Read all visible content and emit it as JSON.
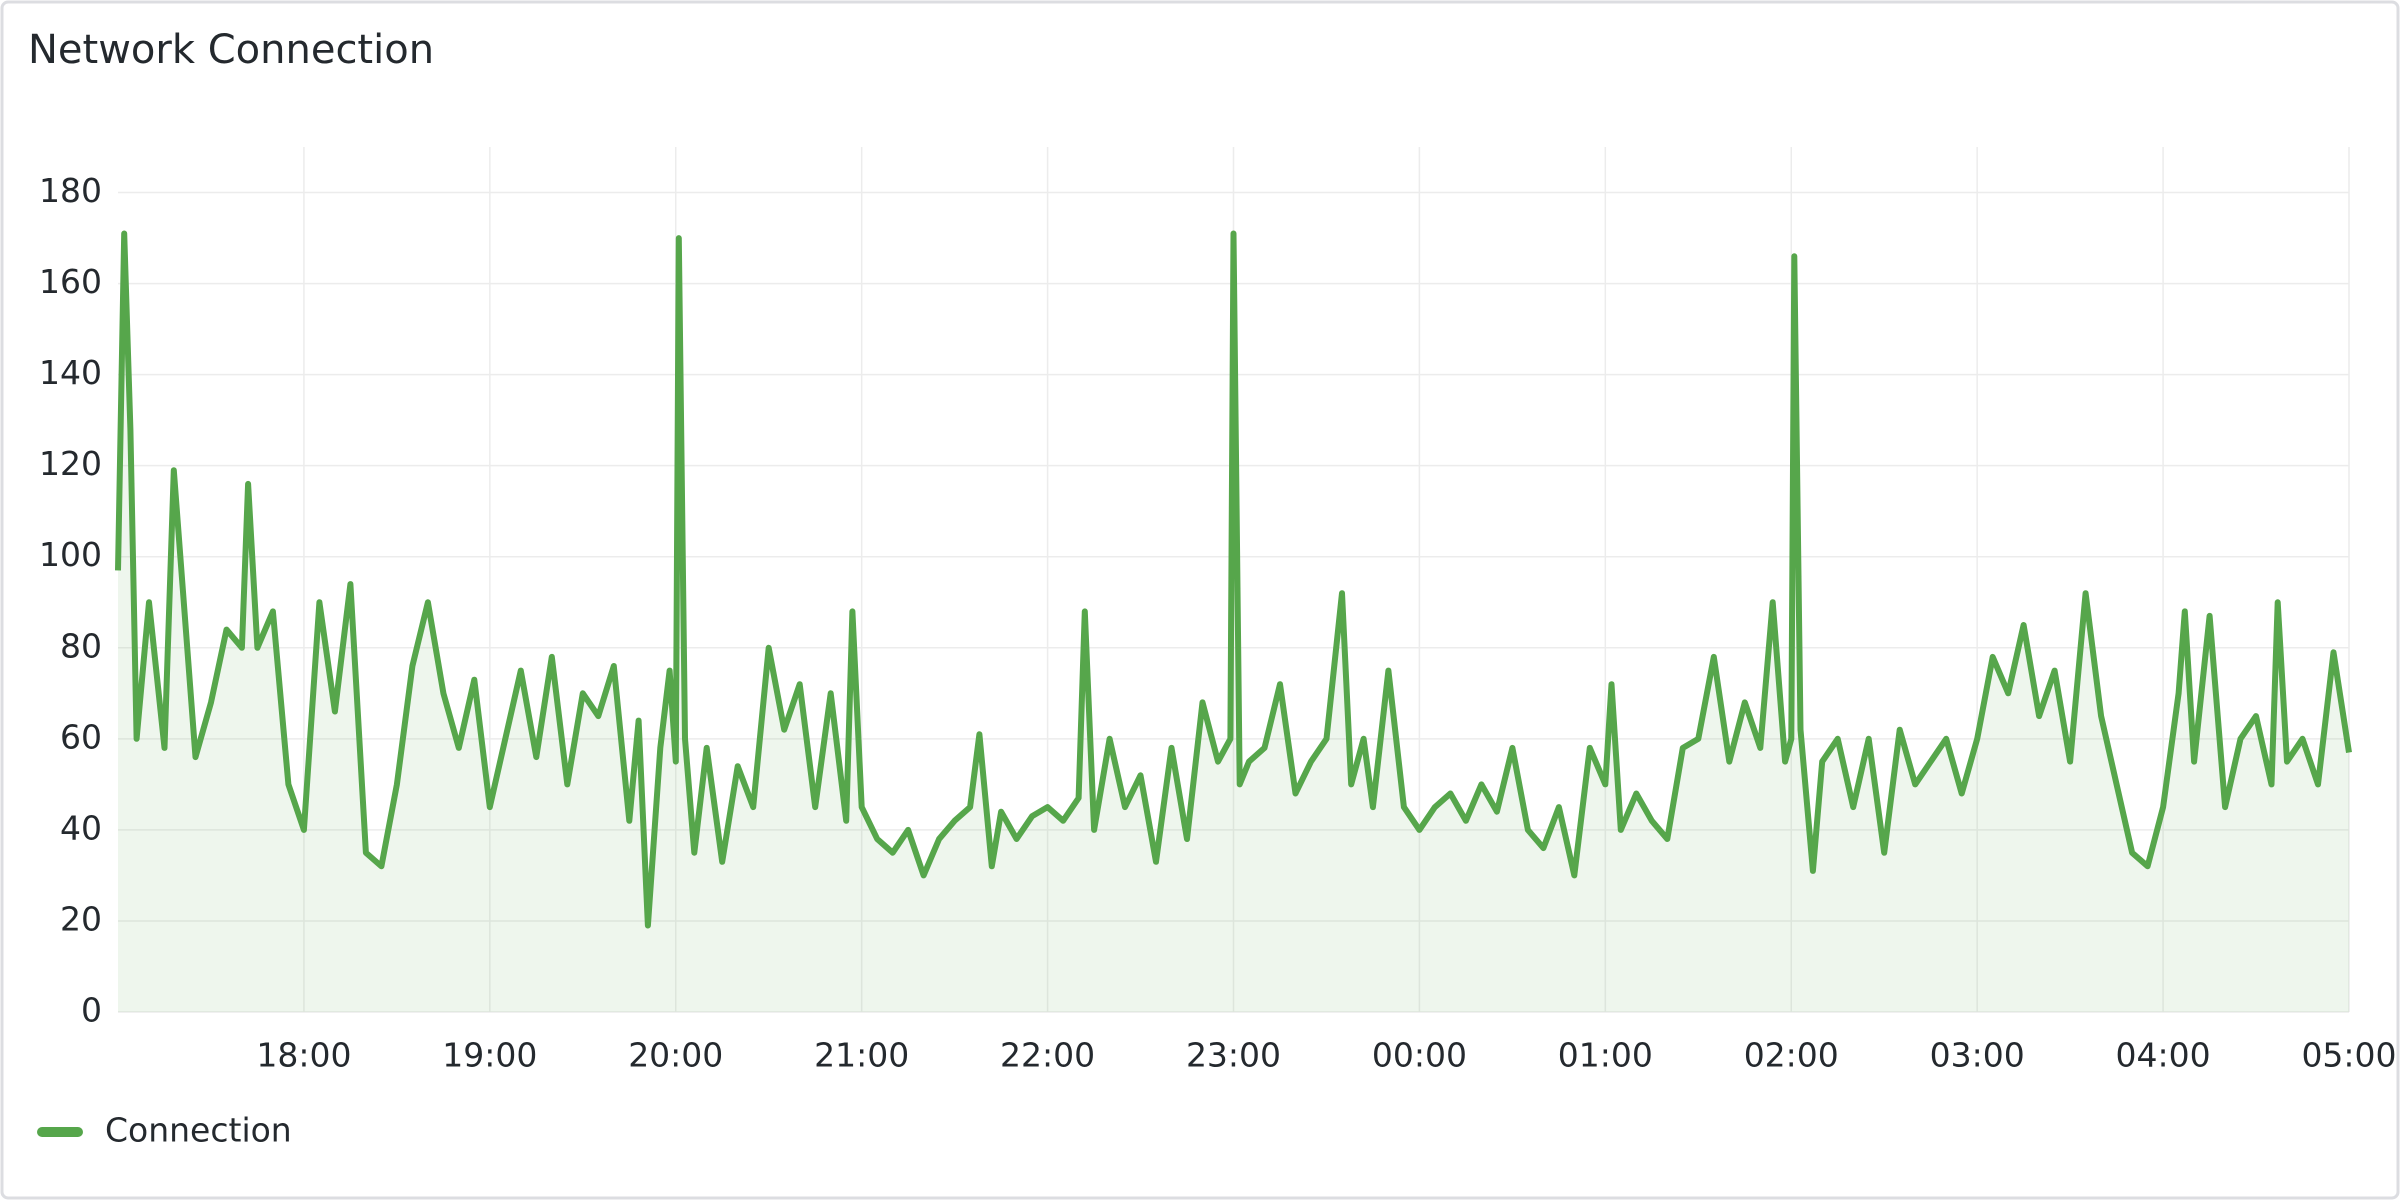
{
  "chart_data": {
    "type": "area-line",
    "title": "Network Connection",
    "x": [
      "17:00",
      "17:02",
      "17:04",
      "17:06",
      "17:10",
      "17:15",
      "17:18",
      "17:25",
      "17:30",
      "17:35",
      "17:40",
      "17:42",
      "17:45",
      "17:50",
      "17:55",
      "18:00",
      "18:05",
      "18:10",
      "18:15",
      "18:20",
      "18:25",
      "18:30",
      "18:35",
      "18:40",
      "18:45",
      "18:50",
      "18:55",
      "19:00",
      "19:05",
      "19:10",
      "19:15",
      "19:20",
      "19:25",
      "19:30",
      "19:35",
      "19:40",
      "19:45",
      "19:48",
      "19:51",
      "19:55",
      "19:58",
      "20:00",
      "20:01",
      "20:03",
      "20:06",
      "20:10",
      "20:15",
      "20:20",
      "20:25",
      "20:30",
      "20:35",
      "20:40",
      "20:45",
      "20:50",
      "20:55",
      "20:57",
      "21:00",
      "21:05",
      "21:10",
      "21:15",
      "21:20",
      "21:25",
      "21:30",
      "21:35",
      "21:38",
      "21:42",
      "21:45",
      "21:50",
      "21:55",
      "22:00",
      "22:05",
      "22:10",
      "22:12",
      "22:15",
      "22:20",
      "22:25",
      "22:30",
      "22:35",
      "22:40",
      "22:45",
      "22:50",
      "22:55",
      "22:59",
      "23:00",
      "23:02",
      "23:05",
      "23:10",
      "23:15",
      "23:20",
      "23:25",
      "23:30",
      "23:35",
      "23:38",
      "23:42",
      "23:45",
      "23:50",
      "23:55",
      "00:00",
      "00:05",
      "00:10",
      "00:15",
      "00:20",
      "00:25",
      "00:30",
      "00:35",
      "00:40",
      "00:45",
      "00:50",
      "00:55",
      "01:00",
      "01:02",
      "01:05",
      "01:10",
      "01:15",
      "01:20",
      "01:25",
      "01:30",
      "01:35",
      "01:40",
      "01:45",
      "01:50",
      "01:54",
      "01:58",
      "02:00",
      "02:01",
      "02:03",
      "02:07",
      "02:10",
      "02:15",
      "02:20",
      "02:25",
      "02:30",
      "02:35",
      "02:40",
      "02:45",
      "02:50",
      "02:55",
      "03:00",
      "03:05",
      "03:10",
      "03:15",
      "03:20",
      "03:25",
      "03:30",
      "03:35",
      "03:40",
      "03:45",
      "03:50",
      "03:55",
      "04:00",
      "04:05",
      "04:07",
      "04:10",
      "04:15",
      "04:20",
      "04:25",
      "04:30",
      "04:35",
      "04:37",
      "04:40",
      "04:45",
      "04:50",
      "04:55",
      "05:00"
    ],
    "series": [
      {
        "name": "Connection",
        "color": "#56a64b",
        "values": [
          97,
          171,
          128,
          60,
          90,
          58,
          119,
          56,
          68,
          84,
          80,
          116,
          80,
          88,
          50,
          40,
          90,
          66,
          94,
          35,
          32,
          50,
          76,
          90,
          70,
          58,
          73,
          45,
          60,
          75,
          56,
          78,
          50,
          70,
          65,
          76,
          42,
          64,
          19,
          58,
          75,
          55,
          170,
          60,
          35,
          58,
          33,
          54,
          45,
          80,
          62,
          72,
          45,
          70,
          42,
          88,
          45,
          38,
          35,
          40,
          30,
          38,
          42,
          45,
          61,
          32,
          44,
          38,
          43,
          45,
          42,
          47,
          88,
          40,
          60,
          45,
          52,
          33,
          58,
          38,
          68,
          55,
          60,
          171,
          50,
          55,
          58,
          72,
          48,
          55,
          60,
          92,
          50,
          60,
          45,
          75,
          45,
          40,
          45,
          48,
          42,
          50,
          44,
          58,
          40,
          36,
          45,
          30,
          58,
          50,
          72,
          40,
          48,
          42,
          38,
          58,
          60,
          78,
          55,
          68,
          58,
          90,
          55,
          60,
          166,
          62,
          31,
          55,
          60,
          45,
          60,
          35,
          62,
          50,
          55,
          60,
          48,
          60,
          78,
          70,
          85,
          65,
          75,
          55,
          92,
          65,
          50,
          35,
          32,
          45,
          70,
          88,
          55,
          87,
          45,
          60,
          65,
          50,
          90,
          55,
          60,
          50,
          79,
          57
        ]
      }
    ],
    "xlim": [
      "17:00",
      "05:00"
    ],
    "xticks": [
      "18:00",
      "19:00",
      "20:00",
      "21:00",
      "22:00",
      "23:00",
      "00:00",
      "01:00",
      "02:00",
      "03:00",
      "04:00",
      "05:00"
    ],
    "ylim": [
      0,
      190
    ],
    "yticks": [
      0,
      20,
      40,
      60,
      80,
      100,
      120,
      140,
      160,
      180
    ],
    "grid": true,
    "legend": "bottom-left"
  }
}
